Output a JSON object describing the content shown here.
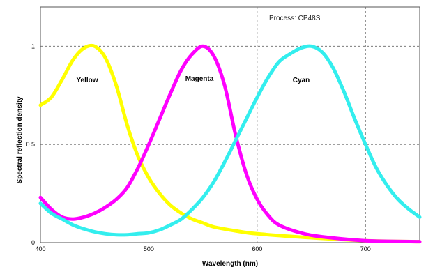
{
  "chart_data": {
    "type": "line",
    "annotation": "Process: CP48S",
    "xlabel": "Wavelength (nm)",
    "ylabel": "Spectral reflection density",
    "xlim": [
      400,
      750
    ],
    "ylim": [
      0,
      1.2
    ],
    "x_ticks": [
      400,
      500,
      600,
      700
    ],
    "y_ticks": [
      0,
      0.5,
      1
    ],
    "y_tick_labels": [
      "0",
      "0.5",
      "1"
    ],
    "grid": true,
    "series": [
      {
        "name": "Yellow",
        "color": "#ffff00",
        "points": [
          [
            400,
            0.7
          ],
          [
            410,
            0.74
          ],
          [
            420,
            0.83
          ],
          [
            430,
            0.93
          ],
          [
            440,
            0.99
          ],
          [
            450,
            1.0
          ],
          [
            460,
            0.94
          ],
          [
            470,
            0.8
          ],
          [
            480,
            0.6
          ],
          [
            490,
            0.44
          ],
          [
            500,
            0.33
          ],
          [
            510,
            0.25
          ],
          [
            520,
            0.19
          ],
          [
            530,
            0.15
          ],
          [
            540,
            0.12
          ],
          [
            550,
            0.1
          ],
          [
            560,
            0.08
          ],
          [
            580,
            0.06
          ],
          [
            600,
            0.045
          ],
          [
            650,
            0.025
          ],
          [
            700,
            0.01
          ],
          [
            750,
            0.005
          ]
        ]
      },
      {
        "name": "Magenta",
        "color": "#ff00ff",
        "points": [
          [
            400,
            0.23
          ],
          [
            410,
            0.17
          ],
          [
            420,
            0.13
          ],
          [
            430,
            0.12
          ],
          [
            440,
            0.13
          ],
          [
            450,
            0.15
          ],
          [
            460,
            0.18
          ],
          [
            470,
            0.22
          ],
          [
            480,
            0.28
          ],
          [
            490,
            0.38
          ],
          [
            500,
            0.5
          ],
          [
            510,
            0.63
          ],
          [
            520,
            0.76
          ],
          [
            530,
            0.88
          ],
          [
            540,
            0.96
          ],
          [
            550,
            1.0
          ],
          [
            560,
            0.95
          ],
          [
            570,
            0.8
          ],
          [
            580,
            0.55
          ],
          [
            590,
            0.35
          ],
          [
            600,
            0.22
          ],
          [
            610,
            0.14
          ],
          [
            620,
            0.09
          ],
          [
            640,
            0.05
          ],
          [
            660,
            0.03
          ],
          [
            700,
            0.01
          ],
          [
            750,
            0.005
          ]
        ]
      },
      {
        "name": "Cyan",
        "color": "#33eeee",
        "points": [
          [
            400,
            0.2
          ],
          [
            410,
            0.15
          ],
          [
            420,
            0.12
          ],
          [
            430,
            0.09
          ],
          [
            440,
            0.07
          ],
          [
            450,
            0.055
          ],
          [
            460,
            0.045
          ],
          [
            470,
            0.04
          ],
          [
            480,
            0.04
          ],
          [
            490,
            0.045
          ],
          [
            500,
            0.05
          ],
          [
            510,
            0.065
          ],
          [
            520,
            0.09
          ],
          [
            530,
            0.12
          ],
          [
            540,
            0.17
          ],
          [
            550,
            0.23
          ],
          [
            560,
            0.31
          ],
          [
            570,
            0.41
          ],
          [
            580,
            0.52
          ],
          [
            590,
            0.63
          ],
          [
            600,
            0.74
          ],
          [
            610,
            0.84
          ],
          [
            620,
            0.92
          ],
          [
            630,
            0.96
          ],
          [
            640,
            0.99
          ],
          [
            650,
            1.0
          ],
          [
            660,
            0.97
          ],
          [
            670,
            0.89
          ],
          [
            680,
            0.77
          ],
          [
            690,
            0.63
          ],
          [
            700,
            0.5
          ],
          [
            710,
            0.38
          ],
          [
            720,
            0.29
          ],
          [
            730,
            0.22
          ],
          [
            740,
            0.17
          ],
          [
            750,
            0.13
          ]
        ]
      }
    ]
  }
}
